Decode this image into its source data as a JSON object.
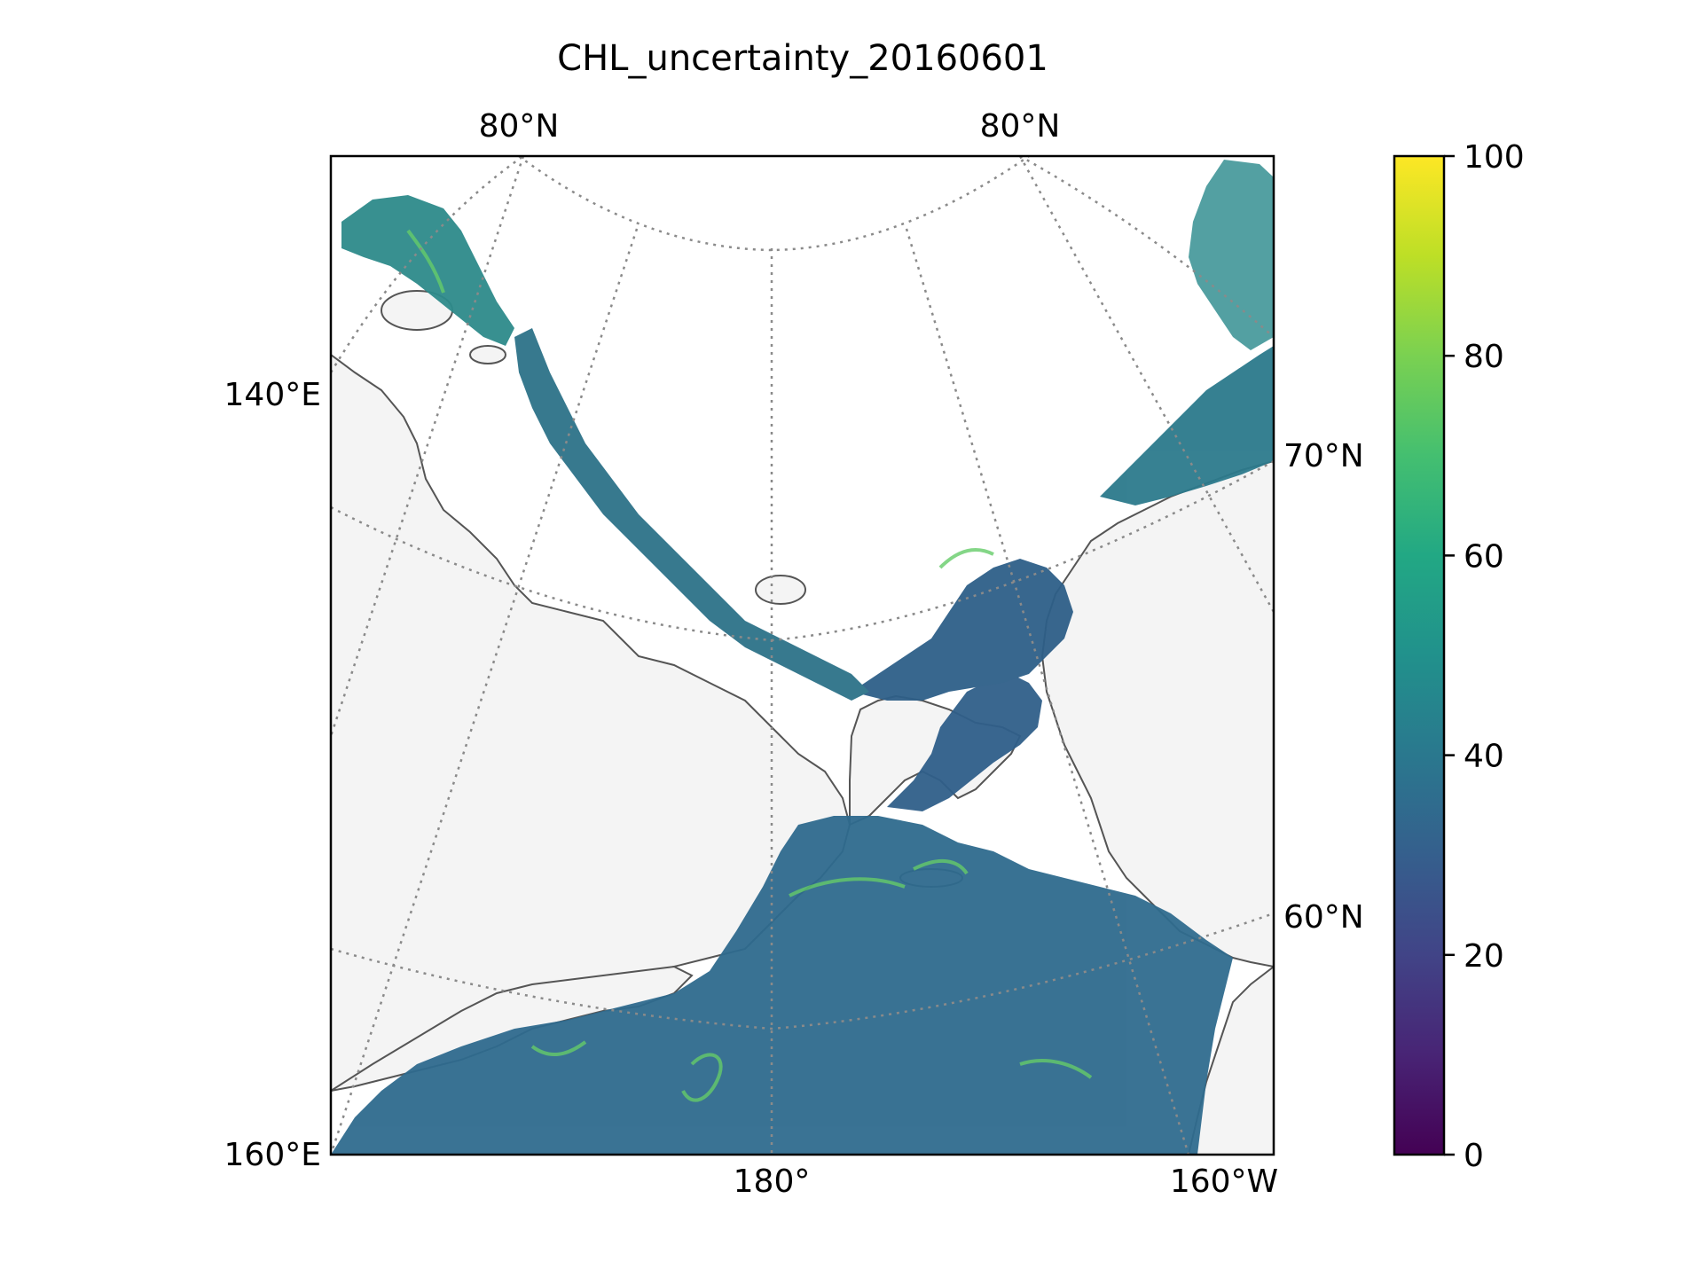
{
  "map": {
    "title": "CHL_uncertainty_20160601",
    "labels": {
      "top_lat_left": "80°N",
      "top_lat_right": "80°N",
      "left_upper": "140°E",
      "left_lower": "160°E",
      "right_upper": "70°N",
      "right_lower": "60°N",
      "bottom_center": "180°",
      "bottom_right": "160°W"
    },
    "land_color": "#f4f4f4",
    "coast_color": "#555555",
    "grid_color": "#8a8a8a"
  },
  "colorbar": {
    "min": 0,
    "max": 100,
    "ticks": [
      "0",
      "20",
      "40",
      "60",
      "80",
      "100"
    ],
    "colormap": "viridis",
    "stops": [
      "#440154",
      "#482475",
      "#414487",
      "#355f8d",
      "#2a788e",
      "#21918c",
      "#22a884",
      "#44bf70",
      "#7ad151",
      "#bddf26",
      "#fde725"
    ]
  }
}
